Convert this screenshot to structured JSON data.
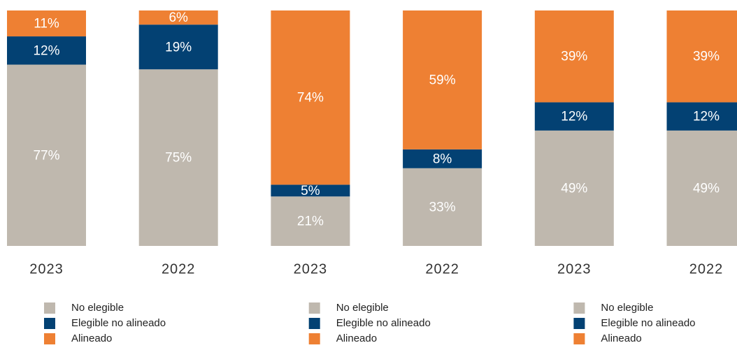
{
  "chart_data": [
    {
      "type": "stacked_bar",
      "categories": [
        "2023",
        "2022"
      ],
      "series": [
        {
          "name": "No elegible",
          "color": "#bfb8ae",
          "values": [
            77,
            75
          ],
          "value_labels": [
            "77%",
            "75%"
          ]
        },
        {
          "name": "Elegible no alineado",
          "color": "#034173",
          "values": [
            12,
            19
          ],
          "value_labels": [
            "12%",
            "19%"
          ]
        },
        {
          "name": "Alineado",
          "color": "#ee8033",
          "values": [
            11,
            6
          ],
          "value_labels": [
            "11%",
            "6%"
          ]
        }
      ]
    },
    {
      "type": "stacked_bar",
      "categories": [
        "2023",
        "2022"
      ],
      "series": [
        {
          "name": "No elegible",
          "color": "#bfb8ae",
          "values": [
            21,
            33
          ],
          "value_labels": [
            "21%",
            "33%"
          ]
        },
        {
          "name": "Elegible no alineado",
          "color": "#034173",
          "values": [
            5,
            8
          ],
          "value_labels": [
            "5%",
            "8%"
          ]
        },
        {
          "name": "Alineado",
          "color": "#ee8033",
          "values": [
            74,
            59
          ],
          "value_labels": [
            "74%",
            "59%"
          ]
        }
      ]
    },
    {
      "type": "stacked_bar",
      "categories": [
        "2023",
        "2022"
      ],
      "series": [
        {
          "name": "No elegible",
          "color": "#bfb8ae",
          "values": [
            49,
            49
          ],
          "value_labels": [
            "49%",
            "49%"
          ]
        },
        {
          "name": "Elegible no alineado",
          "color": "#034173",
          "values": [
            12,
            12
          ],
          "value_labels": [
            "12%",
            "12%"
          ]
        },
        {
          "name": "Alineado",
          "color": "#ee8033",
          "values": [
            39,
            39
          ],
          "value_labels": [
            "39%",
            "39%"
          ]
        }
      ]
    }
  ]
}
